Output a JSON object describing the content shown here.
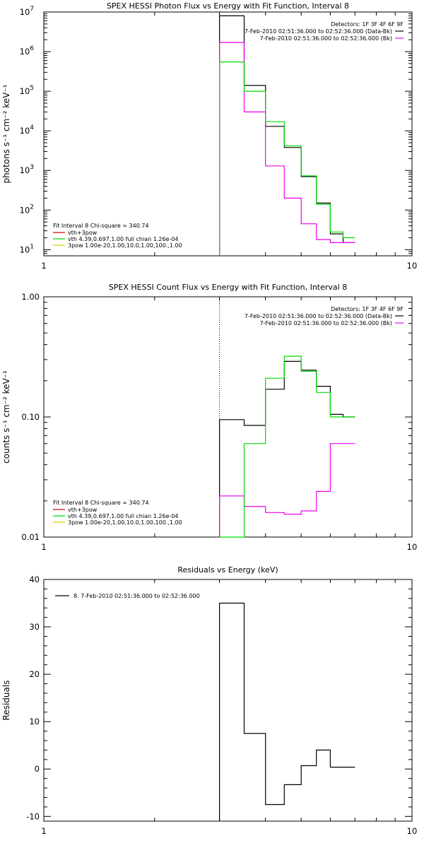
{
  "colors": {
    "data_minus_bk": "#000000",
    "bk": "#ee00ee",
    "total_model": "#00dd00",
    "vth_3pow": "#dd0000",
    "threepow": "#ddcc00",
    "vth": "#00dd00"
  },
  "chart_data": [
    {
      "type": "line",
      "title": "SPEX HESSI Photon Flux vs Energy with Fit Function, Interval 8",
      "ylabel": "photons s⁻¹ cm⁻² keV⁻¹",
      "xscale": "log",
      "yscale": "log",
      "xlim": [
        1,
        10
      ],
      "ylim": [
        7,
        10000000
      ],
      "xticks": [
        "1",
        "10"
      ],
      "yticks": [
        {
          "base": "10",
          "exp": "1",
          "value": 10
        },
        {
          "base": "10",
          "exp": "2",
          "value": 100
        },
        {
          "base": "10",
          "exp": "3",
          "value": 1000
        },
        {
          "base": "10",
          "exp": "4",
          "value": 10000
        },
        {
          "base": "10",
          "exp": "5",
          "value": 100000
        },
        {
          "base": "10",
          "exp": "6",
          "value": 1000000
        },
        {
          "base": "10",
          "exp": "7",
          "value": 10000000
        }
      ],
      "vline_x": 3.0,
      "bin_edges": [
        3.0,
        3.5,
        4.0,
        4.5,
        5.0,
        5.5,
        6.0,
        6.5,
        7.0
      ],
      "series": [
        {
          "name": "7-Feb-2010 02:51:36.000 to 02:52:36.000 (Data-Bk)",
          "color": "#000000",
          "values": [
            8000000,
            140000,
            13000,
            3800,
            700,
            150,
            25,
            15
          ]
        },
        {
          "name": "7-Feb-2010 02:51:36.000 to 02:52:36.000 (Bk)",
          "color": "#ee00ee",
          "values": [
            1700000,
            30000,
            1300,
            200,
            45,
            18,
            15,
            15
          ]
        },
        {
          "name": "vth 4.39,0.697,1.00 full chian 1.26e-04",
          "color": "#00dd00",
          "values": [
            550000,
            100000,
            17000,
            4200,
            730,
            140,
            28,
            20
          ]
        }
      ],
      "legend": {
        "detectors": "Detectors: 1F 3F 4F 6F 9F",
        "fit_header": "Fit Interval 8   Chi-square = 340.74",
        "fit_items": [
          "vth+3pow",
          "vth 4.39,0.697,1.00  full chian 1.26e-04",
          "3pow 1.00e-20,1.00,10.0,1.00,100.,1.00"
        ]
      }
    },
    {
      "type": "line",
      "title": "SPEX HESSI Count Flux vs Energy with Fit Function, Interval 8",
      "ylabel": "counts s⁻¹ cm⁻² keV⁻¹",
      "xscale": "log",
      "yscale": "log",
      "xlim": [
        1,
        10
      ],
      "ylim": [
        0.01,
        1.0
      ],
      "xticks": [
        "1",
        "10"
      ],
      "yticks": [
        {
          "label": "0.01",
          "value": 0.01
        },
        {
          "label": "0.10",
          "value": 0.1
        },
        {
          "label": "1.00",
          "value": 1.0
        }
      ],
      "vline_x": 3.0,
      "bin_edges": [
        3.0,
        3.5,
        4.0,
        4.5,
        5.0,
        5.5,
        6.0,
        6.5,
        7.0
      ],
      "series": [
        {
          "name": "7-Feb-2010 02:51:36.000 to 02:52:36.000 (Data-Bk)",
          "color": "#000000",
          "values": [
            0.095,
            0.085,
            0.17,
            0.29,
            0.245,
            0.18,
            0.105,
            0.1
          ]
        },
        {
          "name": "7-Feb-2010 02:51:36.000 to 02:52:36.000 (Bk)",
          "color": "#ee00ee",
          "values": [
            0.022,
            0.018,
            0.016,
            0.0155,
            0.0165,
            0.024,
            0.06,
            0.06
          ]
        },
        {
          "name": "vth 4.39,0.697,1.00 full chian 1.26e-04",
          "color": "#00dd00",
          "values": [
            0.0,
            0.06,
            0.21,
            0.32,
            0.24,
            0.16,
            0.1,
            0.1
          ]
        }
      ],
      "legend": {
        "detectors": "Detectors: 1F 3F 4F 6F 9F",
        "fit_header": "Fit Interval 8   Chi-square = 340.74",
        "fit_items": [
          "vth+3pow",
          "vth 4.39,0.697,1.00  full chian 1.26e-04",
          "3pow 1.00e-20,1.00,10.0,1.00,100.,1.00"
        ]
      }
    },
    {
      "type": "line",
      "title": "Residuals vs Energy (keV)",
      "ylabel": "Residuals",
      "xscale": "log",
      "yscale": "linear",
      "xlim": [
        1,
        10
      ],
      "ylim": [
        -11,
        40
      ],
      "xticks": [
        "1",
        "10"
      ],
      "yticks": [
        {
          "label": "-10",
          "value": -10
        },
        {
          "label": "0",
          "value": 0
        },
        {
          "label": "10",
          "value": 10
        },
        {
          "label": "20",
          "value": 20
        },
        {
          "label": "30",
          "value": 30
        },
        {
          "label": "40",
          "value": 40
        }
      ],
      "bin_edges": [
        3.0,
        3.5,
        4.0,
        4.5,
        5.0,
        5.5,
        6.0,
        6.5,
        7.0
      ],
      "series": [
        {
          "name": "8.  7-Feb-2010 02:51:36.000 to 02:52:36.000",
          "color": "#000000",
          "values": [
            35,
            7.5,
            -7.5,
            -3.3,
            0.7,
            4,
            0.4,
            0.4
          ]
        }
      ]
    }
  ]
}
